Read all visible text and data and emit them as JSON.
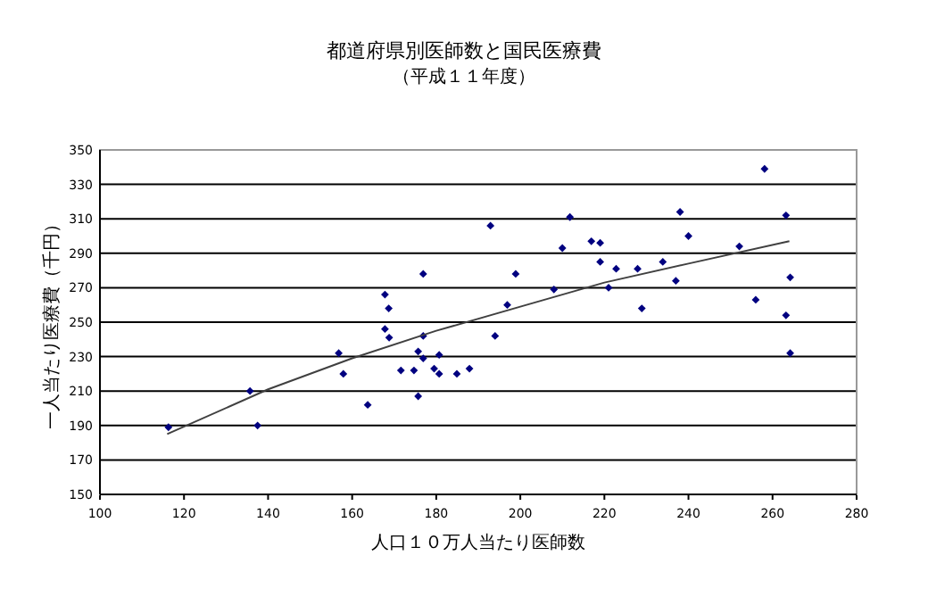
{
  "chart_data": {
    "type": "scatter",
    "title": "都道府県別医師数と国民医療費",
    "subtitle": "（平成１１年度）",
    "xlabel": "人口１０万人当たり医師数",
    "ylabel": "一人当たり医療費（千円）",
    "xlim": [
      100,
      280
    ],
    "xticks": [
      100,
      120,
      140,
      160,
      180,
      200,
      220,
      240,
      260,
      280
    ],
    "ylim": [
      150,
      350
    ],
    "yticks": [
      150,
      170,
      190,
      210,
      230,
      250,
      270,
      290,
      310,
      330,
      350
    ],
    "grid": "y",
    "marker": "diamond",
    "series": [
      {
        "color": "#000080",
        "x": [
          116.3,
          135.7,
          137.5,
          156.8,
          157.9,
          163.7,
          167.8,
          168.7,
          167.8,
          168.8,
          171.6,
          174.7,
          175.7,
          175.7,
          176.9,
          176.9,
          176.9,
          179.5,
          180.7,
          180.7,
          184.9,
          187.9,
          192.9,
          194,
          198.9,
          196.9,
          208,
          210,
          211.8,
          216.9,
          219,
          219,
          221,
          222.8,
          227.9,
          228.9,
          233.9,
          237,
          238,
          240,
          252.1,
          256,
          258.1,
          263.2,
          264.2,
          263.2,
          264.2
        ],
        "values": [
          189,
          210,
          190,
          232,
          220,
          202,
          266,
          258,
          246,
          241,
          222,
          222,
          207,
          233,
          229,
          278,
          242,
          223,
          231,
          220,
          220,
          223,
          306,
          242,
          278,
          260,
          269,
          293,
          311,
          297,
          296,
          285,
          270,
          281,
          281,
          258,
          285,
          274,
          314,
          300,
          294,
          263,
          339,
          312,
          276,
          254,
          232
        ]
      },
      {
        "type": "line",
        "color": "#404040",
        "marker": "none",
        "x": [
          116,
          140,
          160,
          180,
          200,
          220,
          240,
          264
        ],
        "values": [
          185,
          211,
          229,
          245,
          259,
          273,
          284,
          297
        ]
      }
    ]
  }
}
